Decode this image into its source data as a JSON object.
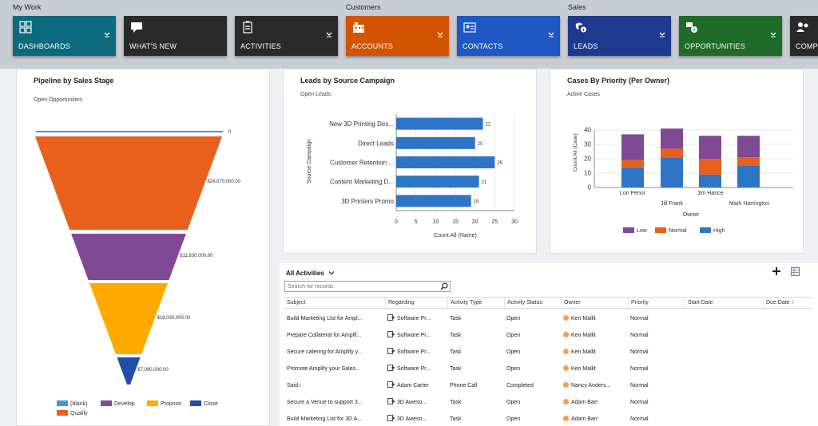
{
  "nav": {
    "groups": [
      {
        "label": "My Work"
      },
      {
        "label": "Customers"
      },
      {
        "label": "Sales"
      }
    ],
    "tiles": [
      {
        "label": "DASHBOARDS",
        "color": "#0d6a7e",
        "icon": "dashboard-icon",
        "chevron": true
      },
      {
        "label": "WHAT'S NEW",
        "color": "#2a2a2a",
        "icon": "chat-icon",
        "chevron": false
      },
      {
        "label": "ACTIVITIES",
        "color": "#2a2a2a",
        "icon": "clipboard-icon",
        "chevron": true
      },
      {
        "label": "ACCOUNTS",
        "color": "#d35400",
        "icon": "building-icon",
        "chevron": true
      },
      {
        "label": "CONTACTS",
        "color": "#1f58c4",
        "icon": "contact-card-icon",
        "chevron": true
      },
      {
        "label": "LEADS",
        "color": "#1d3a8f",
        "icon": "phone-info-icon",
        "chevron": true
      },
      {
        "label": "OPPORTUNITIES",
        "color": "#1e6b2a",
        "icon": "opportunity-icon",
        "chevron": true
      },
      {
        "label": "COMPE",
        "color": "#2a2a2a",
        "icon": "competitor-icon",
        "chevron": false
      }
    ]
  },
  "pipeline": {
    "title": "Pipeline by Sales Stage",
    "subtitle": "Open Opportunities",
    "chart_data": {
      "type": "funnel",
      "stages": [
        {
          "name": "(blank)",
          "value": 0,
          "label": "0",
          "color": "#4a90d9"
        },
        {
          "name": "Qualify",
          "value": 24070000,
          "label": "$24,070,000.00",
          "color": "#e8601c"
        },
        {
          "name": "Develop",
          "value": 11830000,
          "label": "$11,830,000.00",
          "color": "#7f4a93"
        },
        {
          "name": "Propose",
          "value": 18030000,
          "label": "$18,030,000.00",
          "color": "#ffaa00"
        },
        {
          "name": "Close",
          "value": 7090000,
          "label": "$7,090,000.00",
          "color": "#1f4fa8"
        }
      ],
      "legend": [
        "(blank)",
        "Develop",
        "Propose",
        "Close",
        "Qualify"
      ]
    }
  },
  "leads": {
    "title": "Leads by Source Campaign",
    "subtitle": "Open Leads",
    "chart_data": {
      "type": "bar",
      "orientation": "horizontal",
      "categories": [
        "New 3D Printing Des...",
        "Direct Leads",
        "Customer Retention ...",
        "Content Marketing D...",
        "3D Printers Promo"
      ],
      "values": [
        22,
        20,
        25,
        21,
        19
      ],
      "xlabel": "Count:All (Name)",
      "ylabel": "Source Campaign",
      "xlim": [
        0,
        30
      ],
      "xticks": [
        0,
        5,
        10,
        15,
        20,
        25,
        30
      ],
      "color": "#2e75c8"
    }
  },
  "cases": {
    "title": "Cases By Priority (Per Owner)",
    "subtitle": "Active Cases",
    "chart_data": {
      "type": "bar",
      "stacked": true,
      "categories": [
        "Lori Penor",
        "Jill Frank",
        "Jim Hance",
        "Mark Harrington"
      ],
      "series": [
        {
          "name": "High",
          "values": [
            14,
            21,
            9,
            15
          ],
          "color": "#2e75c8"
        },
        {
          "name": "Normal",
          "values": [
            5,
            6,
            11,
            6
          ],
          "color": "#e8601c"
        },
        {
          "name": "Low",
          "values": [
            18,
            14,
            16,
            15
          ],
          "color": "#7f4a93"
        }
      ],
      "legend": [
        "Low",
        "Normal",
        "High"
      ],
      "xlabel": "Owner",
      "ylabel": "Count:All (Case)",
      "ylim": [
        0,
        40
      ],
      "yticks": [
        0,
        10,
        20,
        30,
        40
      ]
    }
  },
  "activities": {
    "title": "All Activities",
    "search_placeholder": "Search for records",
    "columns": [
      "Subject",
      "Regarding",
      "Activity Type",
      "Activity Status",
      "Owner",
      "Priority",
      "Start Date",
      "Due Date"
    ],
    "sort_indicator": "↑",
    "rows": [
      {
        "subject": "Build Marketing List for Ampl...",
        "regarding": "Software Pr...",
        "regarding_icon": "campaign-icon",
        "type": "Task",
        "status": "Open",
        "owner": "Ken Mallit",
        "priority": "Normal"
      },
      {
        "subject": "Prepare Collateral for Amplif...",
        "regarding": "Software Pr...",
        "regarding_icon": "campaign-icon",
        "type": "Task",
        "status": "Open",
        "owner": "Ken Mallit",
        "priority": "Normal"
      },
      {
        "subject": "Secure catering for Amplify y...",
        "regarding": "Software Pr...",
        "regarding_icon": "campaign-icon",
        "type": "Task",
        "status": "Open",
        "owner": "Ken Mallit",
        "priority": "Normal"
      },
      {
        "subject": "Promote Amplify your Sales...",
        "regarding": "Software Pr...",
        "regarding_icon": "campaign-icon",
        "type": "Task",
        "status": "Open",
        "owner": "Ken Mallit",
        "priority": "Normal"
      },
      {
        "subject": "Said i",
        "regarding": "Adam Carter",
        "regarding_icon": "contact-icon",
        "type": "Phone Call",
        "status": "Completed",
        "owner": "Nancy Anders...",
        "priority": "Normal"
      },
      {
        "subject": "Secure a Venue to support 3...",
        "regarding": "3D Aweso...",
        "regarding_icon": "campaign-icon",
        "type": "Task",
        "status": "Open",
        "owner": "Adam Barr",
        "priority": "Normal"
      },
      {
        "subject": "Build Marketing List for 3D A...",
        "regarding": "3D Aweso...",
        "regarding_icon": "campaign-icon",
        "type": "Task",
        "status": "Open",
        "owner": "Adam Barr",
        "priority": "Normal"
      }
    ]
  }
}
